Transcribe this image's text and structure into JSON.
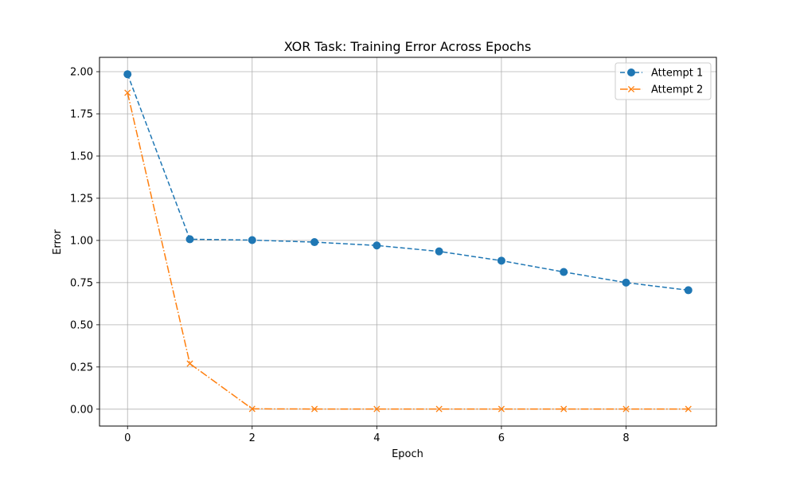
{
  "chart_data": {
    "type": "line",
    "title": "XOR Task: Training Error Across Epochs",
    "xlabel": "Epoch",
    "ylabel": "Error",
    "xlim": [
      -0.45,
      9.45
    ],
    "ylim": [
      -0.1,
      2.085
    ],
    "x_ticks": [
      0,
      2,
      4,
      6,
      8
    ],
    "x_tick_labels": [
      "0",
      "2",
      "4",
      "6",
      "8"
    ],
    "y_ticks": [
      0,
      0.25,
      0.5,
      0.75,
      1.0,
      1.25,
      1.5,
      1.75,
      2.0
    ],
    "y_tick_labels": [
      "0.00",
      "0.25",
      "0.50",
      "0.75",
      "1.00",
      "1.25",
      "1.50",
      "1.75",
      "2.00"
    ],
    "grid": true,
    "legend_position": "top-right",
    "x": [
      0,
      1,
      2,
      3,
      4,
      5,
      6,
      7,
      8,
      9
    ],
    "series": [
      {
        "name": "Attempt 1",
        "values": [
          1.985,
          1.007,
          1.002,
          0.99,
          0.97,
          0.935,
          0.88,
          0.813,
          0.75,
          0.705
        ],
        "color": "#1f77b4",
        "linestyle": "dashed",
        "marker": "circle"
      },
      {
        "name": "Attempt 2",
        "values": [
          1.875,
          0.27,
          0.002,
          0.001,
          0.001,
          0.001,
          0.001,
          0.001,
          0.001,
          0.001
        ],
        "color": "#ff7f0e",
        "linestyle": "dashdot",
        "marker": "x"
      }
    ]
  }
}
